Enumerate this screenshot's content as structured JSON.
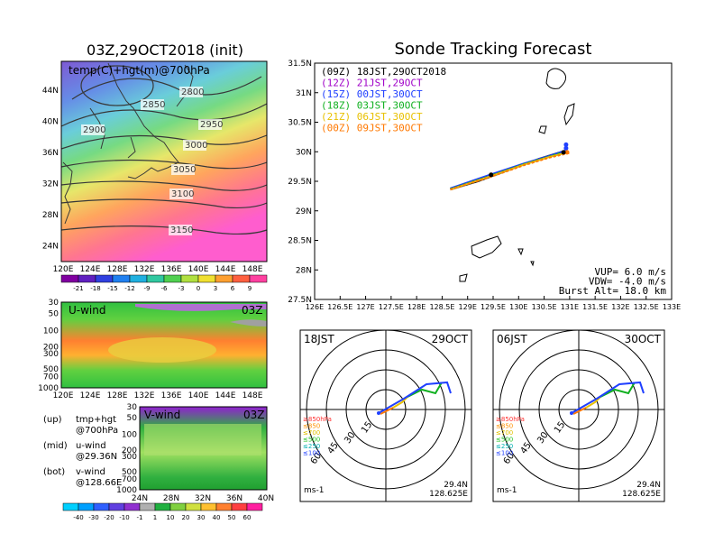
{
  "left": {
    "title": "03Z,29OCT2018 (init)",
    "map_label": "temp(C)+hgt(m)@700hPa",
    "lat_labels": [
      "44N",
      "40N",
      "36N",
      "32N",
      "28N",
      "24N"
    ],
    "lon_labels": [
      "120E",
      "124E",
      "128E",
      "132E",
      "136E",
      "140E",
      "144E",
      "148E"
    ],
    "contours": [
      "2800",
      "2850",
      "2900",
      "2950",
      "3000",
      "3050",
      "3100",
      "3150"
    ],
    "temp_colorbar_labels": [
      "-21",
      "-18",
      "-15",
      "-12",
      "-9",
      "-6",
      "-3",
      "0",
      "3",
      "6",
      "9"
    ],
    "uwind_label": "U-wind",
    "vwind_label": "V-wind",
    "time_tag": "03Z",
    "pressure_labels": [
      "30",
      "50",
      "100",
      "200",
      "300",
      "500",
      "700",
      "1000"
    ],
    "vwind_lat_labels": [
      "24N",
      "28N",
      "32N",
      "36N",
      "40N"
    ],
    "wind_colorbar_labels": [
      "-40",
      "-30",
      "-20",
      "-10",
      "-1",
      "1",
      "10",
      "20",
      "30",
      "40",
      "50",
      "60"
    ],
    "notes": [
      {
        "tag": "(up)",
        "lines": [
          "tmp+hgt",
          "@700hPa"
        ]
      },
      {
        "tag": "(mid)",
        "lines": [
          "u-wind",
          "@29.36N"
        ]
      },
      {
        "tag": "(bot)",
        "lines": [
          "v-wind",
          "@128.66E"
        ]
      }
    ]
  },
  "chart_data": {
    "type": "line",
    "title": "Sonde Tracking Forecast",
    "xlim": [
      126,
      133
    ],
    "ylim": [
      27.5,
      31.5
    ],
    "x_ticks": [
      "126E",
      "126.5E",
      "127E",
      "127.5E",
      "128E",
      "128.5E",
      "129E",
      "129.5E",
      "130E",
      "130.5E",
      "131E",
      "131.5E",
      "132E",
      "132.5E",
      "133E"
    ],
    "y_ticks": [
      "31.5N",
      "31N",
      "30.5N",
      "30N",
      "29.5N",
      "29N",
      "28.5N",
      "28N",
      "27.5N"
    ],
    "legend": [
      {
        "text": "(09Z)  18JST,29OCT2018",
        "color": "#000000"
      },
      {
        "text": "(12Z)  21JST,29OCT",
        "color": "#a000c8"
      },
      {
        "text": "(15Z)  00JST,30OCT",
        "color": "#2040ff"
      },
      {
        "text": "(18Z)  03JST,30OCT",
        "color": "#10b020"
      },
      {
        "text": "(21Z)  06JST,30OCT",
        "color": "#e8c000"
      },
      {
        "text": "(00Z)  09JST,30OCT",
        "color": "#ff7800"
      }
    ],
    "params": [
      "VUP=  6.0 m/s",
      "VDW= -4.0 m/s",
      "Burst Alt= 18.0 km"
    ],
    "series": [
      {
        "name": "(09Z)",
        "color": "#000000",
        "x": [
          128.66,
          129.2,
          129.9,
          130.4,
          130.85
        ],
        "y": [
          29.36,
          29.5,
          29.72,
          29.88,
          30.0
        ]
      },
      {
        "name": "(12Z)",
        "color": "#a000c8",
        "x": [
          128.66,
          129.3,
          130.0,
          130.5,
          130.9
        ],
        "y": [
          29.37,
          29.56,
          29.76,
          29.9,
          30.0
        ]
      },
      {
        "name": "(15Z)",
        "color": "#2040ff",
        "x": [
          128.66,
          129.4,
          130.1,
          130.6,
          130.92
        ],
        "y": [
          29.38,
          29.6,
          29.8,
          29.93,
          30.02
        ]
      },
      {
        "name": "(18Z)",
        "color": "#10b020",
        "x": [
          128.66,
          129.4,
          130.1,
          130.6,
          130.95
        ],
        "y": [
          29.37,
          29.58,
          29.79,
          29.92,
          30.01
        ]
      },
      {
        "name": "(21Z)",
        "color": "#e8c000",
        "x": [
          128.66,
          129.4,
          130.1,
          130.6,
          130.97
        ],
        "y": [
          29.36,
          29.57,
          29.78,
          29.91,
          29.99
        ]
      },
      {
        "name": "(00Z)",
        "color": "#ff7800",
        "x": [
          128.66,
          129.4,
          130.1,
          130.6,
          131.0
        ],
        "y": [
          29.36,
          29.56,
          29.77,
          29.9,
          29.98
        ]
      }
    ],
    "markers": [
      {
        "x": 130.93,
        "y": 30.12,
        "color": "#2040ff"
      },
      {
        "x": 130.93,
        "y": 30.06,
        "color": "#2040ff"
      },
      {
        "x": 130.95,
        "y": 29.99,
        "color": "#ff7800"
      },
      {
        "x": 130.88,
        "y": 29.99,
        "color": "#000000"
      },
      {
        "x": 129.46,
        "y": 29.61,
        "color": "#000000"
      }
    ]
  },
  "hodographs": [
    {
      "time": "18JST",
      "date": "29OCT",
      "lat": "29.4N",
      "lon": "128.625E"
    },
    {
      "time": "06JST",
      "date": "30OCT",
      "lat": "29.4N",
      "lon": "128.625E"
    }
  ],
  "hodo_common": {
    "units": "ms-1",
    "rings": [
      "15",
      "30",
      "45",
      "60"
    ],
    "levels": [
      {
        "text": "≥850hPa",
        "color": "#ff3030"
      },
      {
        "text": "≤850",
        "color": "#ff9000"
      },
      {
        "text": "≤700",
        "color": "#e0c000"
      },
      {
        "text": "≤500",
        "color": "#20c020"
      },
      {
        "text": "≤250",
        "color": "#00b0b0"
      },
      {
        "text": "≤100",
        "color": "#2040ff"
      }
    ]
  }
}
